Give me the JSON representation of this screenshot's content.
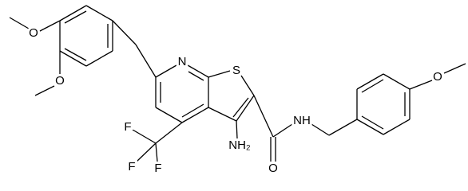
{
  "atoms": [
    {
      "label": "O"
    },
    {
      "label": "O"
    },
    {
      "label": "N"
    },
    {
      "label": "S"
    },
    {
      "label": "F"
    },
    {
      "label": "F"
    },
    {
      "label": "F"
    },
    {
      "label": "NH₂"
    },
    {
      "label": "O"
    },
    {
      "label": "NH"
    },
    {
      "label": "O"
    }
  ]
}
